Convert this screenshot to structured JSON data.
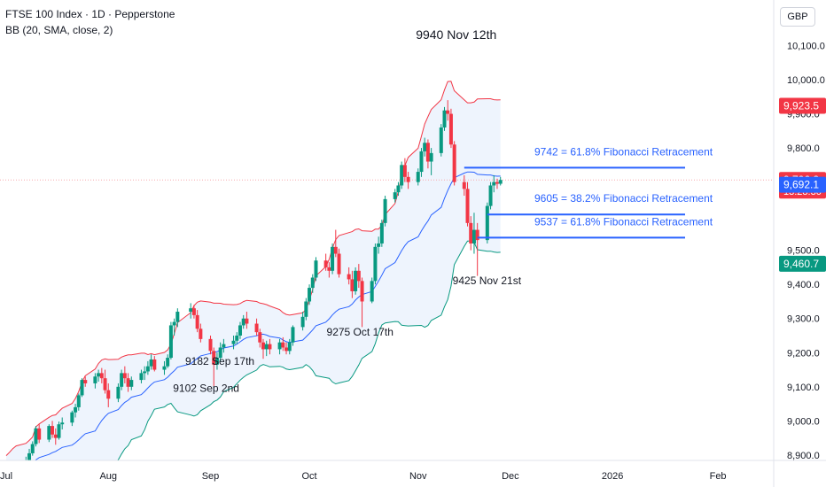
{
  "header": {
    "title": "FTSE 100 Index · 1D · Pepperstone",
    "indicator": "BB (20, SMA, close, 2)"
  },
  "currency_button": "GBP",
  "chart_data": {
    "type": "candlestick",
    "colors": {
      "up": "#089981",
      "down": "#f23645",
      "bb_upper": "#f23645",
      "bb_lower": "#089981",
      "bb_basis": "#2962ff",
      "bb_fill": "#eef4fd",
      "fib_line": "#2962ff",
      "fib_text": "#2962ff",
      "price_line": "#f7a8ad"
    },
    "x_axis": {
      "date_ticks": [
        {
          "label": "Jul",
          "date": "2025-07-01"
        },
        {
          "label": "Aug",
          "date": "2025-08-01"
        },
        {
          "label": "Sep",
          "date": "2025-09-01"
        },
        {
          "label": "Oct",
          "date": "2025-10-01"
        },
        {
          "label": "Nov",
          "date": "2025-11-03"
        },
        {
          "label": "Dec",
          "date": "2025-12-01"
        },
        {
          "label": "2026",
          "date": "2026-01-01"
        },
        {
          "label": "Feb",
          "date": "2026-02-02"
        }
      ]
    },
    "y_axis": {
      "range": [
        8860,
        10180
      ],
      "ticks": [
        {
          "value": 8900,
          "label": "8,900.0"
        },
        {
          "value": 9000,
          "label": "9,000.0"
        },
        {
          "value": 9100,
          "label": "9,100.0"
        },
        {
          "value": 9200,
          "label": "9,200.0"
        },
        {
          "value": 9300,
          "label": "9,300.0"
        },
        {
          "value": 9400,
          "label": "9,400.0"
        },
        {
          "value": 9500,
          "label": "9,500.0"
        },
        {
          "value": 9800,
          "label": "9,800.0"
        },
        {
          "value": 9900,
          "label": "9,900.0"
        },
        {
          "value": 10000,
          "label": "10,000.0"
        },
        {
          "value": 10100,
          "label": "10,100.0"
        }
      ]
    },
    "price_labels": [
      {
        "value": 9923.5,
        "label": "9,923.5",
        "color": "#f23645"
      },
      {
        "value": 9706.2,
        "label": "9,706.2",
        "sublabel": "13:28:30",
        "color": "#f23645"
      },
      {
        "value": 9692.1,
        "label": "9,692.1",
        "color": "#2962ff"
      },
      {
        "value": 9460.7,
        "label": "9,460.7",
        "color": "#089981"
      }
    ],
    "fib_levels": [
      {
        "value": 9742,
        "label": "9742 = 61.8% Fibonacci Retracement"
      },
      {
        "value": 9605,
        "label": "9605 = 38.2% Fibonacci Retracement"
      },
      {
        "value": 9537,
        "label": "9537 = 61.8% Fibonacci Retracement"
      }
    ],
    "annotations": [
      {
        "text": "9940 Nov 12th",
        "date": "2025-11-12",
        "value": 10120
      },
      {
        "text": "9425 Nov 21st",
        "date": "2025-11-21",
        "value": 9400
      },
      {
        "text": "9275 Oct 17th",
        "date": "2025-10-17",
        "value": 9250
      },
      {
        "text": "9182 Sep 17th",
        "date": "2025-09-17",
        "value": 9165
      },
      {
        "text": "9102 Sep 2nd",
        "date": "2025-09-02",
        "value": 9085
      }
    ],
    "candles": [
      {
        "d": "2025-07-01",
        "o": 8780,
        "h": 8822,
        "l": 8770,
        "c": 8818
      },
      {
        "d": "2025-07-02",
        "o": 8818,
        "h": 8842,
        "l": 8800,
        "c": 8838
      },
      {
        "d": "2025-07-03",
        "o": 8838,
        "h": 8872,
        "l": 8828,
        "c": 8860
      },
      {
        "d": "2025-07-04",
        "o": 8860,
        "h": 8880,
        "l": 8845,
        "c": 8870
      },
      {
        "d": "2025-07-07",
        "o": 8870,
        "h": 8895,
        "l": 8855,
        "c": 8885
      },
      {
        "d": "2025-07-08",
        "o": 8885,
        "h": 8918,
        "l": 8878,
        "c": 8905
      },
      {
        "d": "2025-07-09",
        "o": 8905,
        "h": 8940,
        "l": 8898,
        "c": 8932
      },
      {
        "d": "2025-07-10",
        "o": 8932,
        "h": 8985,
        "l": 8925,
        "c": 8978
      },
      {
        "d": "2025-07-11",
        "o": 8978,
        "h": 8990,
        "l": 8935,
        "c": 8945
      },
      {
        "d": "2025-07-14",
        "o": 8945,
        "h": 8990,
        "l": 8938,
        "c": 8985
      },
      {
        "d": "2025-07-15",
        "o": 8985,
        "h": 9000,
        "l": 8950,
        "c": 8960
      },
      {
        "d": "2025-07-16",
        "o": 8960,
        "h": 8978,
        "l": 8930,
        "c": 8950
      },
      {
        "d": "2025-07-17",
        "o": 8950,
        "h": 8998,
        "l": 8945,
        "c": 8990
      },
      {
        "d": "2025-07-18",
        "o": 8990,
        "h": 9010,
        "l": 8975,
        "c": 8995
      },
      {
        "d": "2025-07-21",
        "o": 8995,
        "h": 9030,
        "l": 8985,
        "c": 9025
      },
      {
        "d": "2025-07-22",
        "o": 9025,
        "h": 9050,
        "l": 9010,
        "c": 9040
      },
      {
        "d": "2025-07-23",
        "o": 9040,
        "h": 9080,
        "l": 9030,
        "c": 9075
      },
      {
        "d": "2025-07-24",
        "o": 9075,
        "h": 9125,
        "l": 9070,
        "c": 9120
      },
      {
        "d": "2025-07-25",
        "o": 9120,
        "h": 9130,
        "l": 9100,
        "c": 9110
      },
      {
        "d": "2025-07-28",
        "o": 9110,
        "h": 9140,
        "l": 9095,
        "c": 9130
      },
      {
        "d": "2025-07-29",
        "o": 9130,
        "h": 9150,
        "l": 9115,
        "c": 9140
      },
      {
        "d": "2025-07-30",
        "o": 9140,
        "h": 9155,
        "l": 9110,
        "c": 9125
      },
      {
        "d": "2025-07-31",
        "o": 9125,
        "h": 9150,
        "l": 9080,
        "c": 9090
      },
      {
        "d": "2025-08-01",
        "o": 9090,
        "h": 9110,
        "l": 9040,
        "c": 9065
      },
      {
        "d": "2025-08-04",
        "o": 9065,
        "h": 9110,
        "l": 9055,
        "c": 9100
      },
      {
        "d": "2025-08-05",
        "o": 9100,
        "h": 9150,
        "l": 9090,
        "c": 9140
      },
      {
        "d": "2025-08-06",
        "o": 9140,
        "h": 9160,
        "l": 9110,
        "c": 9125
      },
      {
        "d": "2025-08-07",
        "o": 9125,
        "h": 9140,
        "l": 9085,
        "c": 9100
      },
      {
        "d": "2025-08-08",
        "o": 9100,
        "h": 9130,
        "l": 9090,
        "c": 9120
      },
      {
        "d": "2025-08-11",
        "o": 9120,
        "h": 9150,
        "l": 9110,
        "c": 9140
      },
      {
        "d": "2025-08-12",
        "o": 9140,
        "h": 9160,
        "l": 9120,
        "c": 9145
      },
      {
        "d": "2025-08-13",
        "o": 9145,
        "h": 9175,
        "l": 9135,
        "c": 9160
      },
      {
        "d": "2025-08-14",
        "o": 9160,
        "h": 9195,
        "l": 9150,
        "c": 9180
      },
      {
        "d": "2025-08-15",
        "o": 9180,
        "h": 9190,
        "l": 9145,
        "c": 9150
      },
      {
        "d": "2025-08-18",
        "o": 9150,
        "h": 9175,
        "l": 9135,
        "c": 9160
      },
      {
        "d": "2025-08-19",
        "o": 9160,
        "h": 9195,
        "l": 9155,
        "c": 9185
      },
      {
        "d": "2025-08-20",
        "o": 9185,
        "h": 9290,
        "l": 9180,
        "c": 9280
      },
      {
        "d": "2025-08-21",
        "o": 9280,
        "h": 9300,
        "l": 9250,
        "c": 9290
      },
      {
        "d": "2025-08-22",
        "o": 9290,
        "h": 9330,
        "l": 9275,
        "c": 9320
      },
      {
        "d": "2025-08-26",
        "o": 9320,
        "h": 9345,
        "l": 9300,
        "c": 9330
      },
      {
        "d": "2025-08-27",
        "o": 9330,
        "h": 9340,
        "l": 9300,
        "c": 9310
      },
      {
        "d": "2025-08-28",
        "o": 9310,
        "h": 9325,
        "l": 9260,
        "c": 9270
      },
      {
        "d": "2025-08-29",
        "o": 9270,
        "h": 9285,
        "l": 9230,
        "c": 9240
      },
      {
        "d": "2025-09-01",
        "o": 9240,
        "h": 9250,
        "l": 9195,
        "c": 9205
      },
      {
        "d": "2025-09-02",
        "o": 9205,
        "h": 9215,
        "l": 9102,
        "c": 9165
      },
      {
        "d": "2025-09-03",
        "o": 9165,
        "h": 9200,
        "l": 9150,
        "c": 9185
      },
      {
        "d": "2025-09-04",
        "o": 9185,
        "h": 9230,
        "l": 9175,
        "c": 9215
      },
      {
        "d": "2025-09-05",
        "o": 9215,
        "h": 9240,
        "l": 9200,
        "c": 9225
      },
      {
        "d": "2025-09-08",
        "o": 9225,
        "h": 9250,
        "l": 9210,
        "c": 9235
      },
      {
        "d": "2025-09-09",
        "o": 9235,
        "h": 9260,
        "l": 9225,
        "c": 9250
      },
      {
        "d": "2025-09-10",
        "o": 9250,
        "h": 9290,
        "l": 9240,
        "c": 9280
      },
      {
        "d": "2025-09-11",
        "o": 9280,
        "h": 9310,
        "l": 9270,
        "c": 9300
      },
      {
        "d": "2025-09-12",
        "o": 9300,
        "h": 9320,
        "l": 9270,
        "c": 9285
      },
      {
        "d": "2025-09-15",
        "o": 9285,
        "h": 9300,
        "l": 9250,
        "c": 9260
      },
      {
        "d": "2025-09-16",
        "o": 9260,
        "h": 9270,
        "l": 9215,
        "c": 9230
      },
      {
        "d": "2025-09-17",
        "o": 9230,
        "h": 9240,
        "l": 9182,
        "c": 9210
      },
      {
        "d": "2025-09-18",
        "o": 9210,
        "h": 9235,
        "l": 9190,
        "c": 9225
      },
      {
        "d": "2025-09-19",
        "o": 9225,
        "h": 9240,
        "l": 9195,
        "c": 9210
      },
      {
        "d": "2025-09-22",
        "o": 9210,
        "h": 9240,
        "l": 9195,
        "c": 9230
      },
      {
        "d": "2025-09-23",
        "o": 9230,
        "h": 9245,
        "l": 9205,
        "c": 9215
      },
      {
        "d": "2025-09-24",
        "o": 9215,
        "h": 9230,
        "l": 9195,
        "c": 9205
      },
      {
        "d": "2025-09-25",
        "o": 9205,
        "h": 9240,
        "l": 9195,
        "c": 9230
      },
      {
        "d": "2025-09-26",
        "o": 9230,
        "h": 9280,
        "l": 9220,
        "c": 9275
      },
      {
        "d": "2025-09-29",
        "o": 9275,
        "h": 9320,
        "l": 9265,
        "c": 9305
      },
      {
        "d": "2025-09-30",
        "o": 9305,
        "h": 9360,
        "l": 9295,
        "c": 9350
      },
      {
        "d": "2025-10-01",
        "o": 9350,
        "h": 9400,
        "l": 9340,
        "c": 9390
      },
      {
        "d": "2025-10-02",
        "o": 9390,
        "h": 9430,
        "l": 9375,
        "c": 9420
      },
      {
        "d": "2025-10-03",
        "o": 9420,
        "h": 9480,
        "l": 9410,
        "c": 9470
      },
      {
        "d": "2025-10-06",
        "o": 9470,
        "h": 9490,
        "l": 9440,
        "c": 9450
      },
      {
        "d": "2025-10-07",
        "o": 9450,
        "h": 9465,
        "l": 9420,
        "c": 9440
      },
      {
        "d": "2025-10-08",
        "o": 9440,
        "h": 9520,
        "l": 9430,
        "c": 9510
      },
      {
        "d": "2025-10-09",
        "o": 9510,
        "h": 9560,
        "l": 9480,
        "c": 9490
      },
      {
        "d": "2025-10-10",
        "o": 9490,
        "h": 9505,
        "l": 9420,
        "c": 9430
      },
      {
        "d": "2025-10-13",
        "o": 9430,
        "h": 9450,
        "l": 9400,
        "c": 9415
      },
      {
        "d": "2025-10-14",
        "o": 9415,
        "h": 9440,
        "l": 9360,
        "c": 9380
      },
      {
        "d": "2025-10-15",
        "o": 9380,
        "h": 9450,
        "l": 9370,
        "c": 9440
      },
      {
        "d": "2025-10-16",
        "o": 9440,
        "h": 9460,
        "l": 9390,
        "c": 9410
      },
      {
        "d": "2025-10-17",
        "o": 9410,
        "h": 9420,
        "l": 9275,
        "c": 9350
      },
      {
        "d": "2025-10-20",
        "o": 9350,
        "h": 9420,
        "l": 9345,
        "c": 9410
      },
      {
        "d": "2025-10-21",
        "o": 9410,
        "h": 9520,
        "l": 9400,
        "c": 9510
      },
      {
        "d": "2025-10-22",
        "o": 9510,
        "h": 9540,
        "l": 9490,
        "c": 9520
      },
      {
        "d": "2025-10-23",
        "o": 9520,
        "h": 9590,
        "l": 9510,
        "c": 9580
      },
      {
        "d": "2025-10-24",
        "o": 9580,
        "h": 9660,
        "l": 9570,
        "c": 9650
      },
      {
        "d": "2025-10-27",
        "o": 9650,
        "h": 9680,
        "l": 9640,
        "c": 9670
      },
      {
        "d": "2025-10-28",
        "o": 9670,
        "h": 9700,
        "l": 9660,
        "c": 9690
      },
      {
        "d": "2025-10-29",
        "o": 9690,
        "h": 9760,
        "l": 9680,
        "c": 9750
      },
      {
        "d": "2025-10-30",
        "o": 9750,
        "h": 9770,
        "l": 9700,
        "c": 9715
      },
      {
        "d": "2025-10-31",
        "o": 9715,
        "h": 9730,
        "l": 9680,
        "c": 9700
      },
      {
        "d": "2025-11-03",
        "o": 9700,
        "h": 9740,
        "l": 9690,
        "c": 9730
      },
      {
        "d": "2025-11-04",
        "o": 9730,
        "h": 9800,
        "l": 9715,
        "c": 9790
      },
      {
        "d": "2025-11-05",
        "o": 9790,
        "h": 9830,
        "l": 9775,
        "c": 9815
      },
      {
        "d": "2025-11-06",
        "o": 9815,
        "h": 9825,
        "l": 9740,
        "c": 9760
      },
      {
        "d": "2025-11-07",
        "o": 9760,
        "h": 9800,
        "l": 9720,
        "c": 9785
      },
      {
        "d": "2025-11-10",
        "o": 9785,
        "h": 9870,
        "l": 9775,
        "c": 9860
      },
      {
        "d": "2025-11-11",
        "o": 9860,
        "h": 9920,
        "l": 9850,
        "c": 9910
      },
      {
        "d": "2025-11-12",
        "o": 9910,
        "h": 9940,
        "l": 9880,
        "c": 9900
      },
      {
        "d": "2025-11-13",
        "o": 9900,
        "h": 9915,
        "l": 9800,
        "c": 9810
      },
      {
        "d": "2025-11-14",
        "o": 9810,
        "h": 9820,
        "l": 9690,
        "c": 9700
      },
      {
        "d": "2025-11-17",
        "o": 9700,
        "h": 9720,
        "l": 9660,
        "c": 9680
      },
      {
        "d": "2025-11-18",
        "o": 9680,
        "h": 9700,
        "l": 9570,
        "c": 9580
      },
      {
        "d": "2025-11-19",
        "o": 9580,
        "h": 9600,
        "l": 9500,
        "c": 9520
      },
      {
        "d": "2025-11-20",
        "o": 9520,
        "h": 9610,
        "l": 9490,
        "c": 9560
      },
      {
        "d": "2025-11-21",
        "o": 9560,
        "h": 9580,
        "l": 9425,
        "c": 9530
      },
      {
        "d": "2025-11-24",
        "o": 9530,
        "h": 9640,
        "l": 9520,
        "c": 9630
      },
      {
        "d": "2025-11-25",
        "o": 9630,
        "h": 9700,
        "l": 9620,
        "c": 9690
      },
      {
        "d": "2025-11-26",
        "o": 9690,
        "h": 9720,
        "l": 9670,
        "c": 9700
      },
      {
        "d": "2025-11-27",
        "o": 9700,
        "h": 9710,
        "l": 9680,
        "c": 9695
      },
      {
        "d": "2025-11-28",
        "o": 9695,
        "h": 9715,
        "l": 9690,
        "c": 9706.2
      }
    ]
  }
}
